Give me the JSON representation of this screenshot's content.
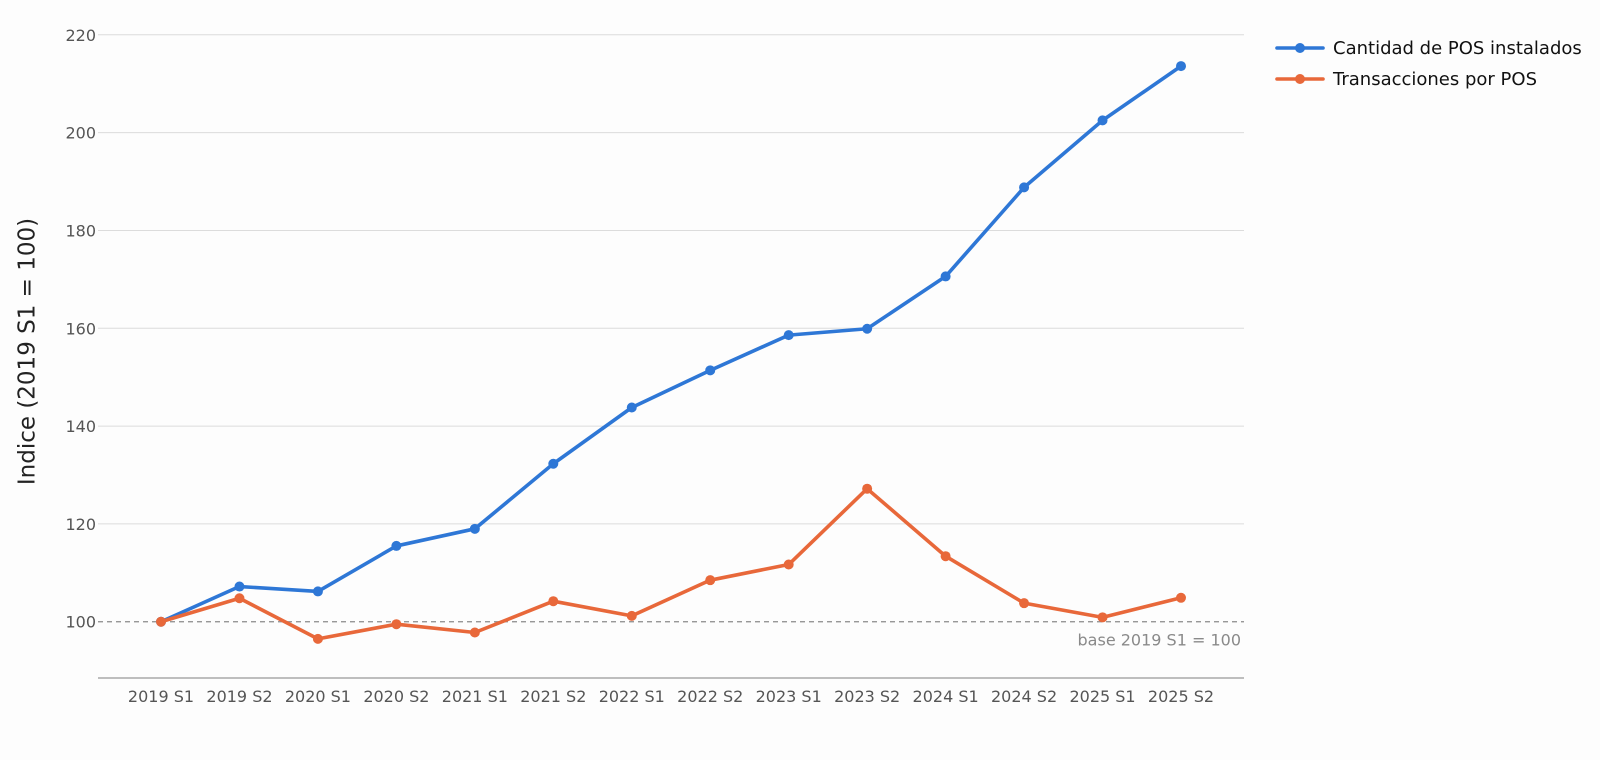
{
  "chart_data": {
    "type": "line",
    "categories": [
      "2019 S1",
      "2019 S2",
      "2020 S1",
      "2020 S2",
      "2021 S1",
      "2021 S2",
      "2022 S1",
      "2022 S2",
      "2023 S1",
      "2023 S2",
      "2024 S1",
      "2024 S2",
      "2025 S1",
      "2025 S2"
    ],
    "series": [
      {
        "name": "Cantidad de POS instalados",
        "color": "#2e77d6",
        "values": [
          100,
          107.2,
          106.2,
          115.5,
          119,
          132.3,
          143.8,
          151.4,
          158.6,
          159.9,
          170.6,
          188.8,
          202.5,
          213.6
        ]
      },
      {
        "name": "Transacciones por POS",
        "color": "#e8683a",
        "values": [
          100,
          104.8,
          96.5,
          99.5,
          97.8,
          104.2,
          101.2,
          108.5,
          111.7,
          127.2,
          113.4,
          103.8,
          100.9,
          104.9
        ]
      }
    ],
    "ylabel": "Indice (2019 S1 = 100)",
    "xlabel": "",
    "ylim": [
      88.5,
      222
    ],
    "yticks": [
      100,
      120,
      140,
      160,
      180,
      200,
      220
    ],
    "reference_line": {
      "value": 100,
      "label": "base 2019 S1 = 100"
    },
    "grid": true,
    "legend_position": "top-right"
  }
}
